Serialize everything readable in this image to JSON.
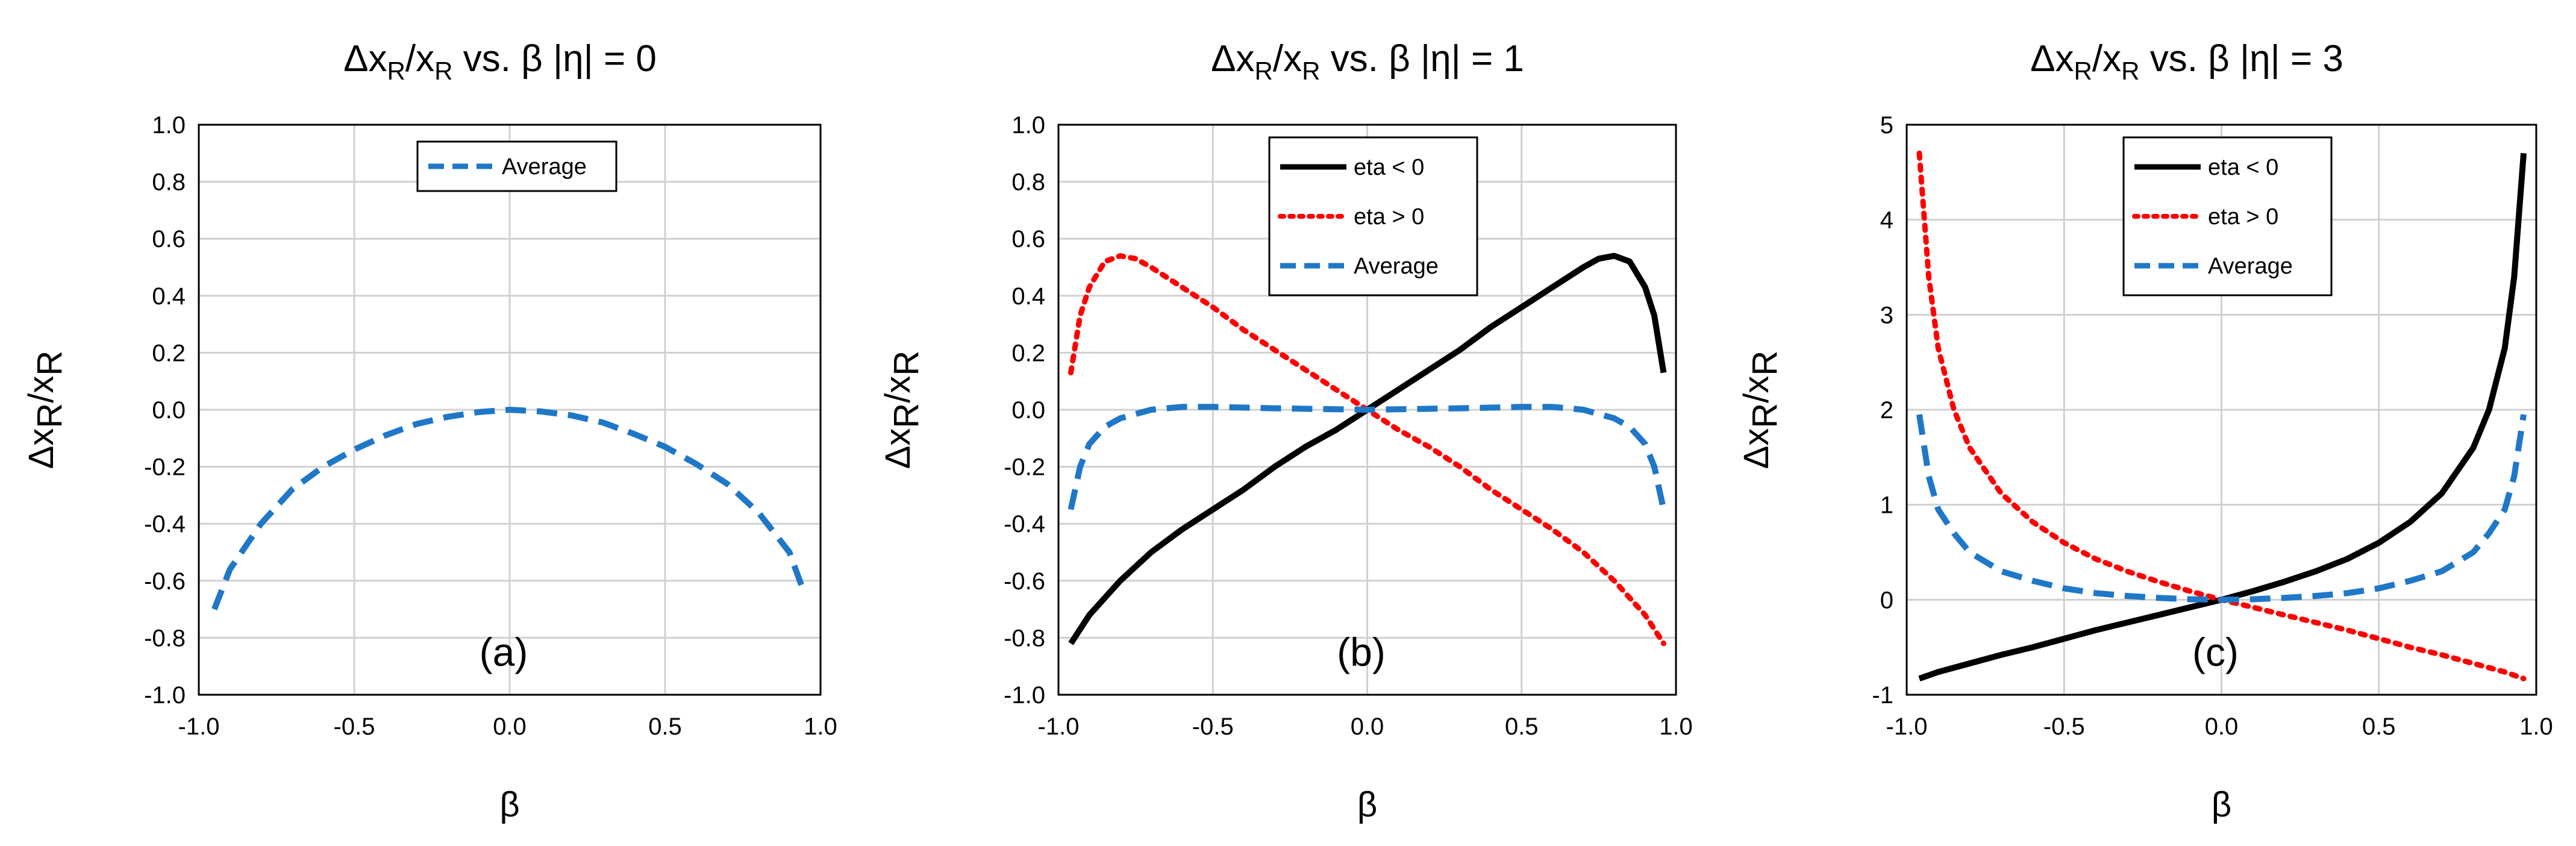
{
  "chart_data": [
    {
      "type": "line",
      "title": {
        "pre": "Δx",
        "sub1": "R",
        "mid": "/x",
        "sub2": "R",
        "post": " vs. β |η| = 0"
      },
      "xlabel": "β",
      "ylabel": {
        "pre": "Δx",
        "sub1": "R",
        "mid": "/x",
        "sub2": "R"
      },
      "xlim": [
        -1.0,
        1.0
      ],
      "ylim": [
        -1.0,
        1.0
      ],
      "xticks": [
        -1.0,
        -0.5,
        0.0,
        0.5,
        1.0
      ],
      "xtick_labels": [
        "-1.0",
        "-0.5",
        "0.0",
        "0.5",
        "1.0"
      ],
      "yticks": [
        -1.0,
        -0.8,
        -0.6,
        -0.4,
        -0.2,
        0.0,
        0.2,
        0.4,
        0.6,
        0.8,
        1.0
      ],
      "ytick_labels": [
        "-1.0",
        "-0.8",
        "-0.6",
        "-0.4",
        "-0.2",
        "0.0",
        "0.2",
        "0.4",
        "0.6",
        "0.8",
        "1.0"
      ],
      "grid": true,
      "annotation": "(a)",
      "legend_position": "top-center",
      "series": [
        {
          "name": "Average",
          "color": "#1f77c8",
          "style": "dashed",
          "x": [
            -0.95,
            -0.9,
            -0.8,
            -0.7,
            -0.6,
            -0.5,
            -0.4,
            -0.3,
            -0.2,
            -0.1,
            0.0,
            0.1,
            0.2,
            0.3,
            0.4,
            0.5,
            0.6,
            0.7,
            0.8,
            0.9,
            0.95
          ],
          "y": [
            -0.7,
            -0.56,
            -0.4,
            -0.28,
            -0.2,
            -0.14,
            -0.09,
            -0.05,
            -0.025,
            -0.008,
            0.0,
            -0.006,
            -0.02,
            -0.045,
            -0.085,
            -0.13,
            -0.19,
            -0.26,
            -0.36,
            -0.5,
            -0.65
          ]
        }
      ]
    },
    {
      "type": "line",
      "title": {
        "pre": "Δx",
        "sub1": "R",
        "mid": "/x",
        "sub2": "R",
        "post": " vs. β |η| = 1"
      },
      "xlabel": "β",
      "ylabel": {
        "pre": "Δx",
        "sub1": "R",
        "mid": "/x",
        "sub2": "R"
      },
      "xlim": [
        -1.0,
        1.0
      ],
      "ylim": [
        -1.0,
        1.0
      ],
      "xticks": [
        -1.0,
        -0.5,
        0.0,
        0.5,
        1.0
      ],
      "xtick_labels": [
        "-1.0",
        "-0.5",
        "0.0",
        "0.5",
        "1.0"
      ],
      "yticks": [
        -1.0,
        -0.8,
        -0.6,
        -0.4,
        -0.2,
        0.0,
        0.2,
        0.4,
        0.6,
        0.8,
        1.0
      ],
      "ytick_labels": [
        "-1.0",
        "-0.8",
        "-0.6",
        "-0.4",
        "-0.2",
        "0.0",
        "0.2",
        "0.4",
        "0.6",
        "0.8",
        "1.0"
      ],
      "grid": true,
      "annotation": "(b)",
      "legend_position": "top-center",
      "series": [
        {
          "name": "eta < 0",
          "color": "#000000",
          "style": "solid",
          "x": [
            -0.96,
            -0.9,
            -0.8,
            -0.7,
            -0.6,
            -0.5,
            -0.4,
            -0.3,
            -0.2,
            -0.1,
            0.0,
            0.1,
            0.2,
            0.3,
            0.4,
            0.5,
            0.6,
            0.7,
            0.75,
            0.8,
            0.85,
            0.9,
            0.93,
            0.96
          ],
          "y": [
            -0.82,
            -0.72,
            -0.6,
            -0.5,
            -0.42,
            -0.35,
            -0.28,
            -0.2,
            -0.13,
            -0.07,
            0.0,
            0.07,
            0.14,
            0.21,
            0.29,
            0.36,
            0.43,
            0.5,
            0.53,
            0.54,
            0.52,
            0.43,
            0.33,
            0.13
          ]
        },
        {
          "name": "eta > 0",
          "color": "#ff0000",
          "style": "dotted",
          "x": [
            -0.96,
            -0.93,
            -0.9,
            -0.85,
            -0.8,
            -0.75,
            -0.7,
            -0.6,
            -0.5,
            -0.4,
            -0.3,
            -0.2,
            -0.1,
            0.0,
            0.1,
            0.2,
            0.3,
            0.4,
            0.5,
            0.6,
            0.7,
            0.8,
            0.9,
            0.96
          ],
          "y": [
            0.13,
            0.33,
            0.43,
            0.52,
            0.54,
            0.53,
            0.5,
            0.43,
            0.36,
            0.28,
            0.21,
            0.14,
            0.07,
            0.0,
            -0.07,
            -0.13,
            -0.2,
            -0.28,
            -0.35,
            -0.42,
            -0.5,
            -0.6,
            -0.72,
            -0.82
          ]
        },
        {
          "name": "Average",
          "color": "#1f77c8",
          "style": "dashed",
          "x": [
            -0.96,
            -0.93,
            -0.9,
            -0.85,
            -0.8,
            -0.7,
            -0.6,
            -0.5,
            -0.3,
            0.0,
            0.3,
            0.5,
            0.6,
            0.7,
            0.8,
            0.85,
            0.9,
            0.93,
            0.96
          ],
          "y": [
            -0.35,
            -0.2,
            -0.12,
            -0.06,
            -0.03,
            0.0,
            0.01,
            0.01,
            0.005,
            0.0,
            0.005,
            0.01,
            0.01,
            0.0,
            -0.03,
            -0.06,
            -0.12,
            -0.2,
            -0.35
          ]
        }
      ]
    },
    {
      "type": "line",
      "title": {
        "pre": "Δx",
        "sub1": "R",
        "mid": "/x",
        "sub2": "R",
        "post": " vs. β |η| = 3"
      },
      "xlabel": "β",
      "ylabel": {
        "pre": "Δx",
        "sub1": "R",
        "mid": "/x",
        "sub2": "R"
      },
      "xlim": [
        -1.0,
        1.0
      ],
      "ylim": [
        -1,
        5
      ],
      "xticks": [
        -1.0,
        -0.5,
        0.0,
        0.5,
        1.0
      ],
      "xtick_labels": [
        "-1.0",
        "-0.5",
        "0.0",
        "0.5",
        "1.0"
      ],
      "yticks": [
        -1,
        0,
        1,
        2,
        3,
        4,
        5
      ],
      "ytick_labels": [
        "-1",
        "0",
        "1",
        "2",
        "3",
        "4",
        "5"
      ],
      "grid": true,
      "annotation": "(c)",
      "legend_position": "top-center",
      "series": [
        {
          "name": "eta < 0",
          "color": "#000000",
          "style": "solid",
          "x": [
            -0.96,
            -0.9,
            -0.8,
            -0.7,
            -0.6,
            -0.5,
            -0.4,
            -0.3,
            -0.2,
            -0.1,
            0.0,
            0.1,
            0.2,
            0.3,
            0.4,
            0.5,
            0.6,
            0.7,
            0.8,
            0.85,
            0.9,
            0.93,
            0.96
          ],
          "y": [
            -0.83,
            -0.76,
            -0.67,
            -0.58,
            -0.5,
            -0.41,
            -0.32,
            -0.24,
            -0.16,
            -0.08,
            0.0,
            0.09,
            0.19,
            0.3,
            0.43,
            0.6,
            0.82,
            1.12,
            1.6,
            2.0,
            2.65,
            3.4,
            4.7
          ]
        },
        {
          "name": "eta > 0",
          "color": "#ff0000",
          "style": "dotted",
          "x": [
            -0.96,
            -0.93,
            -0.9,
            -0.85,
            -0.8,
            -0.7,
            -0.6,
            -0.5,
            -0.4,
            -0.3,
            -0.2,
            -0.1,
            0.0,
            0.1,
            0.2,
            0.3,
            0.4,
            0.5,
            0.6,
            0.7,
            0.8,
            0.9,
            0.96
          ],
          "y": [
            4.7,
            3.4,
            2.65,
            2.0,
            1.6,
            1.12,
            0.82,
            0.6,
            0.43,
            0.3,
            0.19,
            0.09,
            0.0,
            -0.08,
            -0.16,
            -0.24,
            -0.32,
            -0.41,
            -0.5,
            -0.58,
            -0.67,
            -0.76,
            -0.83
          ]
        },
        {
          "name": "Average",
          "color": "#1f77c8",
          "style": "dashed",
          "x": [
            -0.96,
            -0.93,
            -0.9,
            -0.85,
            -0.8,
            -0.7,
            -0.6,
            -0.5,
            -0.4,
            -0.3,
            -0.2,
            -0.1,
            0.0,
            0.1,
            0.2,
            0.3,
            0.4,
            0.5,
            0.6,
            0.7,
            0.8,
            0.85,
            0.9,
            0.93,
            0.96
          ],
          "y": [
            1.95,
            1.3,
            0.95,
            0.7,
            0.5,
            0.3,
            0.2,
            0.12,
            0.07,
            0.04,
            0.02,
            0.005,
            0.0,
            0.005,
            0.02,
            0.04,
            0.07,
            0.12,
            0.2,
            0.3,
            0.5,
            0.7,
            0.95,
            1.3,
            1.95
          ]
        }
      ]
    }
  ]
}
